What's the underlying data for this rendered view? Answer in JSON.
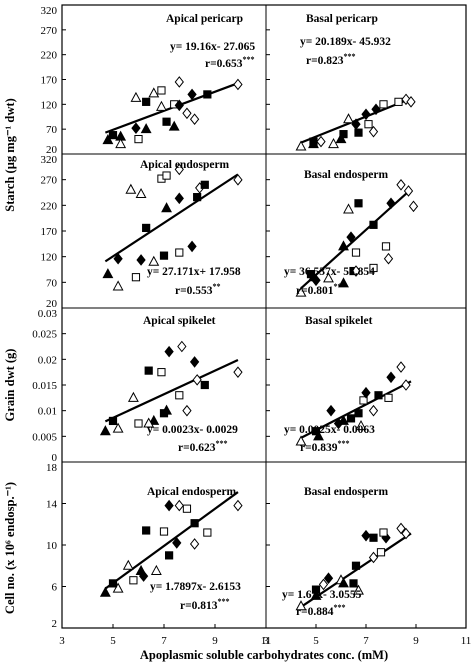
{
  "figure": {
    "xlabel": "Apoplasmic soluble carbohydrates conc. (mM)",
    "x_ticks": [
      "3",
      "5",
      "7",
      "9",
      "11"
    ],
    "rows": [
      {
        "ylabel": "Starch (µg mg⁻¹ dwt)",
        "y_ticks": [
          "20",
          "70",
          "120",
          "170",
          "220",
          "270",
          "320"
        ]
      },
      {
        "ylabel": "Starch (µg mg⁻¹ dwt)",
        "y_ticks": [
          "20",
          "70",
          "120",
          "170",
          "220",
          "270",
          "320"
        ]
      },
      {
        "ylabel": "Grain dwt (g)",
        "y_ticks": [
          "0",
          "0.005",
          "0.01",
          "0.015",
          "0.02",
          "0.025",
          "0.03"
        ]
      },
      {
        "ylabel": "Cell no. (x 10⁶ endosp.⁻¹)",
        "y_ticks": [
          "2",
          "6",
          "10",
          "14",
          "18"
        ]
      }
    ]
  },
  "chart_data": [
    {
      "type": "scatter",
      "title": "Apical pericarp",
      "equation": "y= 19.16x- 27.065",
      "r": "r=0.653",
      "sig": "***",
      "xlim": [
        3,
        11
      ],
      "ylim": [
        20,
        320
      ],
      "fit_line": {
        "slope": 19.16,
        "intercept": -27.065,
        "x_range": [
          4.7,
          9.9
        ]
      },
      "points": [
        {
          "s": "tri_f",
          "x": 4.8,
          "y": 48
        },
        {
          "s": "tri_f",
          "x": 5.3,
          "y": 55
        },
        {
          "s": "sq_f",
          "x": 5.0,
          "y": 58
        },
        {
          "s": "tri_o",
          "x": 5.9,
          "y": 133
        },
        {
          "s": "tri_o",
          "x": 6.6,
          "y": 142
        },
        {
          "s": "tri_o",
          "x": 5.3,
          "y": 40
        },
        {
          "s": "tri_f",
          "x": 6.3,
          "y": 70
        },
        {
          "s": "dia_f",
          "x": 5.9,
          "y": 72
        },
        {
          "s": "sq_o",
          "x": 6.9,
          "y": 148
        },
        {
          "s": "sq_o",
          "x": 7.4,
          "y": 120
        },
        {
          "s": "sq_o",
          "x": 6.0,
          "y": 50
        },
        {
          "s": "tri_o",
          "x": 6.9,
          "y": 115
        },
        {
          "s": "sq_f",
          "x": 6.3,
          "y": 125
        },
        {
          "s": "sq_f",
          "x": 7.1,
          "y": 85
        },
        {
          "s": "tri_f",
          "x": 7.4,
          "y": 75
        },
        {
          "s": "dia_o",
          "x": 7.6,
          "y": 165
        },
        {
          "s": "dia_f",
          "x": 8.1,
          "y": 140
        },
        {
          "s": "dia_o",
          "x": 7.9,
          "y": 102
        },
        {
          "s": "dia_o",
          "x": 8.2,
          "y": 90
        },
        {
          "s": "sq_f",
          "x": 8.7,
          "y": 140
        },
        {
          "s": "dia_f",
          "x": 7.6,
          "y": 118
        },
        {
          "s": "dia_o",
          "x": 9.9,
          "y": 160
        }
      ]
    },
    {
      "type": "scatter",
      "title": "Basal pericarp",
      "equation": "y= 20.189x- 45.932",
      "r": "r=0.823",
      "sig": "***",
      "xlim": [
        3,
        11
      ],
      "ylim": [
        20,
        320
      ],
      "fit_line": {
        "slope": 20.189,
        "intercept": -45.932,
        "x_range": [
          4.4,
          8.8
        ]
      },
      "points": [
        {
          "s": "tri_o",
          "x": 4.4,
          "y": 35
        },
        {
          "s": "tri_f",
          "x": 4.9,
          "y": 40
        },
        {
          "s": "sq_f",
          "x": 4.9,
          "y": 45
        },
        {
          "s": "dia_o",
          "x": 5.2,
          "y": 45
        },
        {
          "s": "tri_o",
          "x": 5.7,
          "y": 40
        },
        {
          "s": "tri_f",
          "x": 6.0,
          "y": 50
        },
        {
          "s": "sq_f",
          "x": 6.1,
          "y": 60
        },
        {
          "s": "sq_f",
          "x": 6.7,
          "y": 63
        },
        {
          "s": "dia_f",
          "x": 6.6,
          "y": 80
        },
        {
          "s": "tri_o",
          "x": 6.3,
          "y": 90
        },
        {
          "s": "dia_f",
          "x": 7.0,
          "y": 100
        },
        {
          "s": "dia_f",
          "x": 7.4,
          "y": 110
        },
        {
          "s": "dia_o",
          "x": 7.3,
          "y": 65
        },
        {
          "s": "sq_o",
          "x": 7.1,
          "y": 80
        },
        {
          "s": "sq_o",
          "x": 7.7,
          "y": 120
        },
        {
          "s": "sq_o",
          "x": 8.3,
          "y": 125
        },
        {
          "s": "dia_o",
          "x": 8.6,
          "y": 130
        },
        {
          "s": "dia_o",
          "x": 8.8,
          "y": 125
        }
      ]
    },
    {
      "type": "scatter",
      "title": "Apical endosperm",
      "equation": "y= 27.171x+ 17.958",
      "r": "r=0.553",
      "sig": "**",
      "xlim": [
        3,
        11
      ],
      "ylim": [
        70,
        320
      ],
      "fit_line": {
        "slope": 27.171,
        "intercept": 17.958,
        "x_range": [
          4.7,
          9.9
        ]
      },
      "points": [
        {
          "s": "tri_f",
          "x": 4.8,
          "y": 125
        },
        {
          "s": "tri_o",
          "x": 5.2,
          "y": 105
        },
        {
          "s": "dia_f",
          "x": 5.2,
          "y": 150
        },
        {
          "s": "tri_o",
          "x": 5.7,
          "y": 262
        },
        {
          "s": "tri_o",
          "x": 6.1,
          "y": 255
        },
        {
          "s": "sq_o",
          "x": 5.9,
          "y": 120
        },
        {
          "s": "tri_o",
          "x": 6.6,
          "y": 145
        },
        {
          "s": "dia_f",
          "x": 6.1,
          "y": 148
        },
        {
          "s": "sq_f",
          "x": 6.3,
          "y": 200
        },
        {
          "s": "sq_o",
          "x": 6.9,
          "y": 280
        },
        {
          "s": "sq_o",
          "x": 7.1,
          "y": 285
        },
        {
          "s": "tri_f",
          "x": 7.1,
          "y": 232
        },
        {
          "s": "dia_f",
          "x": 7.6,
          "y": 248
        },
        {
          "s": "sq_f",
          "x": 7.0,
          "y": 155
        },
        {
          "s": "sq_o",
          "x": 7.6,
          "y": 160
        },
        {
          "s": "dia_o",
          "x": 7.6,
          "y": 295
        },
        {
          "s": "sq_f",
          "x": 8.3,
          "y": 250
        },
        {
          "s": "dia_o",
          "x": 8.4,
          "y": 265
        },
        {
          "s": "dia_f",
          "x": 8.1,
          "y": 170
        },
        {
          "s": "sq_f",
          "x": 8.6,
          "y": 270
        },
        {
          "s": "dia_o",
          "x": 9.9,
          "y": 278
        }
      ]
    },
    {
      "type": "scatter",
      "title": "Basal endosperm",
      "equation": "y= 36.537x- 58.854",
      "r": "r=0.801",
      "sig": "***",
      "xlim": [
        3,
        11
      ],
      "ylim": [
        70,
        320
      ],
      "fit_line": {
        "slope": 36.537,
        "intercept": -58.854,
        "x_range": [
          4.4,
          8.8
        ]
      },
      "points": [
        {
          "s": "tri_o",
          "x": 4.4,
          "y": 95
        },
        {
          "s": "tri_f",
          "x": 4.9,
          "y": 120
        },
        {
          "s": "sq_f",
          "x": 4.8,
          "y": 125
        },
        {
          "s": "dia_f",
          "x": 5.0,
          "y": 115
        },
        {
          "s": "tri_o",
          "x": 5.5,
          "y": 118
        },
        {
          "s": "tri_f",
          "x": 6.1,
          "y": 110
        },
        {
          "s": "sq_f",
          "x": 6.5,
          "y": 130
        },
        {
          "s": "tri_f",
          "x": 6.1,
          "y": 170
        },
        {
          "s": "dia_f",
          "x": 6.4,
          "y": 185
        },
        {
          "s": "tri_o",
          "x": 6.3,
          "y": 230
        },
        {
          "s": "sq_f",
          "x": 6.7,
          "y": 240
        },
        {
          "s": "sq_o",
          "x": 6.6,
          "y": 160
        },
        {
          "s": "dia_o",
          "x": 6.6,
          "y": 130
        },
        {
          "s": "sq_f",
          "x": 7.3,
          "y": 205
        },
        {
          "s": "sq_o",
          "x": 7.3,
          "y": 135
        },
        {
          "s": "sq_o",
          "x": 7.8,
          "y": 170
        },
        {
          "s": "dia_f",
          "x": 8.0,
          "y": 240
        },
        {
          "s": "dia_o",
          "x": 8.4,
          "y": 270
        },
        {
          "s": "dia_o",
          "x": 8.7,
          "y": 260
        },
        {
          "s": "dia_o",
          "x": 7.9,
          "y": 150
        },
        {
          "s": "dia_o",
          "x": 8.9,
          "y": 235
        }
      ]
    },
    {
      "type": "scatter",
      "title": "Apical spikelet",
      "equation": "y= 0.0023x- 0.0029",
      "r": "r=0.623",
      "sig": "***",
      "xlim": [
        3,
        11
      ],
      "ylim": [
        0,
        0.03
      ],
      "fit_line": {
        "slope": 0.0023,
        "intercept": -0.0029,
        "x_range": [
          4.7,
          9.9
        ]
      },
      "points": [
        {
          "s": "tri_f",
          "x": 4.7,
          "y": 0.006
        },
        {
          "s": "tri_o",
          "x": 5.2,
          "y": 0.0065
        },
        {
          "s": "sq_f",
          "x": 5.0,
          "y": 0.008
        },
        {
          "s": "tri_o",
          "x": 5.8,
          "y": 0.0125
        },
        {
          "s": "tri_f",
          "x": 6.6,
          "y": 0.008
        },
        {
          "s": "tri_o",
          "x": 6.4,
          "y": 0.0075
        },
        {
          "s": "sq_o",
          "x": 6.0,
          "y": 0.0075
        },
        {
          "s": "sq_f",
          "x": 6.4,
          "y": 0.0178
        },
        {
          "s": "tri_f",
          "x": 7.1,
          "y": 0.01
        },
        {
          "s": "sq_f",
          "x": 7.0,
          "y": 0.0095
        },
        {
          "s": "sq_o",
          "x": 6.9,
          "y": 0.0175
        },
        {
          "s": "dia_f",
          "x": 7.2,
          "y": 0.0215
        },
        {
          "s": "dia_o",
          "x": 7.7,
          "y": 0.0225
        },
        {
          "s": "sq_o",
          "x": 7.6,
          "y": 0.013
        },
        {
          "s": "dia_f",
          "x": 8.2,
          "y": 0.0195
        },
        {
          "s": "sq_f",
          "x": 8.6,
          "y": 0.015
        },
        {
          "s": "dia_o",
          "x": 8.3,
          "y": 0.016
        },
        {
          "s": "dia_o",
          "x": 9.9,
          "y": 0.0175
        },
        {
          "s": "dia_o",
          "x": 7.9,
          "y": 0.01
        }
      ]
    },
    {
      "type": "scatter",
      "title": "Basal spikelet",
      "equation": "y= 0.0025x- 0.0063",
      "r": "r=0.839",
      "sig": "***",
      "xlim": [
        3,
        11
      ],
      "ylim": [
        0,
        0.03
      ],
      "fit_line": {
        "slope": 0.0025,
        "intercept": -0.0063,
        "x_range": [
          4.4,
          8.8
        ]
      },
      "points": [
        {
          "s": "tri_o",
          "x": 4.4,
          "y": 0.004
        },
        {
          "s": "tri_f",
          "x": 5.1,
          "y": 0.005
        },
        {
          "s": "sq_f",
          "x": 5.0,
          "y": 0.006
        },
        {
          "s": "dia_f",
          "x": 5.9,
          "y": 0.0075
        },
        {
          "s": "dia_f",
          "x": 5.6,
          "y": 0.01
        },
        {
          "s": "tri_f",
          "x": 6.1,
          "y": 0.008
        },
        {
          "s": "sq_f",
          "x": 6.4,
          "y": 0.0085
        },
        {
          "s": "tri_o",
          "x": 6.8,
          "y": 0.007
        },
        {
          "s": "sq_f",
          "x": 6.7,
          "y": 0.0095
        },
        {
          "s": "sq_o",
          "x": 6.9,
          "y": 0.012
        },
        {
          "s": "dia_f",
          "x": 7.0,
          "y": 0.0135
        },
        {
          "s": "sq_f",
          "x": 7.5,
          "y": 0.013
        },
        {
          "s": "dia_o",
          "x": 7.3,
          "y": 0.01
        },
        {
          "s": "sq_o",
          "x": 7.9,
          "y": 0.0125
        },
        {
          "s": "dia_f",
          "x": 8.0,
          "y": 0.0165
        },
        {
          "s": "dia_o",
          "x": 8.4,
          "y": 0.0185
        },
        {
          "s": "dia_o",
          "x": 8.6,
          "y": 0.015
        }
      ]
    },
    {
      "type": "scatter",
      "title": "Apical endosperm",
      "equation": "y= 1.7897x- 2.6153",
      "r": "r=0.813",
      "sig": "***",
      "xlim": [
        3,
        11
      ],
      "ylim": [
        2,
        18
      ],
      "fit_line": {
        "slope": 1.7897,
        "intercept": -2.6153,
        "x_range": [
          4.7,
          9.9
        ]
      },
      "points": [
        {
          "s": "tri_f",
          "x": 4.7,
          "y": 5.4
        },
        {
          "s": "tri_o",
          "x": 5.2,
          "y": 5.8
        },
        {
          "s": "sq_f",
          "x": 5.0,
          "y": 6.3
        },
        {
          "s": "tri_o",
          "x": 5.6,
          "y": 8.0
        },
        {
          "s": "sq_o",
          "x": 5.8,
          "y": 6.6
        },
        {
          "s": "tri_o",
          "x": 6.7,
          "y": 7.5
        },
        {
          "s": "tri_f",
          "x": 6.1,
          "y": 7.5
        },
        {
          "s": "dia_f",
          "x": 6.2,
          "y": 7.0
        },
        {
          "s": "sq_f",
          "x": 6.3,
          "y": 11.4
        },
        {
          "s": "sq_o",
          "x": 7.0,
          "y": 11.3
        },
        {
          "s": "sq_f",
          "x": 7.2,
          "y": 9.0
        },
        {
          "s": "dia_f",
          "x": 7.2,
          "y": 13.8
        },
        {
          "s": "dia_o",
          "x": 7.6,
          "y": 13.8
        },
        {
          "s": "dia_f",
          "x": 7.5,
          "y": 10.2
        },
        {
          "s": "sq_f",
          "x": 8.2,
          "y": 12.1
        },
        {
          "s": "dia_o",
          "x": 8.2,
          "y": 10.1
        },
        {
          "s": "sq_o",
          "x": 8.7,
          "y": 11.2
        },
        {
          "s": "dia_o",
          "x": 9.9,
          "y": 13.8
        },
        {
          "s": "sq_o",
          "x": 7.9,
          "y": 13.5
        }
      ]
    },
    {
      "type": "scatter",
      "title": "Basal endosperm",
      "equation": "y= 1.61x- 3.0555",
      "r": "r=0.884",
      "sig": "***",
      "xlim": [
        3,
        11
      ],
      "ylim": [
        2,
        18
      ],
      "fit_line": {
        "slope": 1.61,
        "intercept": -3.0555,
        "x_range": [
          4.4,
          8.8
        ]
      },
      "points": [
        {
          "s": "tri_o",
          "x": 4.4,
          "y": 4.1
        },
        {
          "s": "tri_f",
          "x": 5.0,
          "y": 5.1
        },
        {
          "s": "sq_f",
          "x": 5.0,
          "y": 5.7
        },
        {
          "s": "dia_o",
          "x": 5.3,
          "y": 6.2
        },
        {
          "s": "dia_f",
          "x": 5.5,
          "y": 6.8
        },
        {
          "s": "tri_o",
          "x": 6.0,
          "y": 6.6
        },
        {
          "s": "tri_f",
          "x": 6.1,
          "y": 6.3
        },
        {
          "s": "sq_f",
          "x": 6.5,
          "y": 6.3
        },
        {
          "s": "tri_o",
          "x": 6.7,
          "y": 5.6
        },
        {
          "s": "sq_f",
          "x": 6.6,
          "y": 8.0
        },
        {
          "s": "dia_f",
          "x": 7.0,
          "y": 10.9
        },
        {
          "s": "sq_f",
          "x": 7.3,
          "y": 10.7
        },
        {
          "s": "sq_o",
          "x": 7.6,
          "y": 9.3
        },
        {
          "s": "dia_o",
          "x": 7.3,
          "y": 8.8
        },
        {
          "s": "dia_f",
          "x": 7.8,
          "y": 10.7
        },
        {
          "s": "sq_o",
          "x": 7.7,
          "y": 11.2
        },
        {
          "s": "dia_o",
          "x": 8.4,
          "y": 11.6
        },
        {
          "s": "dia_o",
          "x": 8.6,
          "y": 11.1
        }
      ]
    }
  ]
}
